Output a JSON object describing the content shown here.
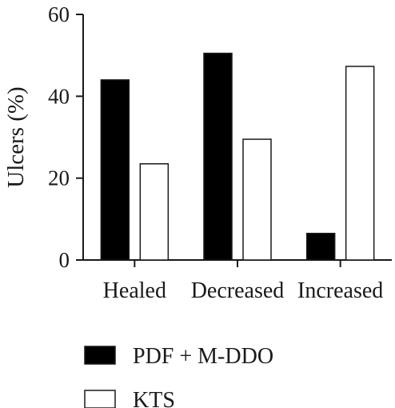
{
  "chart_data": {
    "type": "bar",
    "categories": [
      "Healed",
      "Decreased",
      "Increased"
    ],
    "series": [
      {
        "name": "PDF + M-DDO",
        "values": [
          44,
          50.5,
          6.5
        ],
        "color": "#000000"
      },
      {
        "name": "KTS",
        "values": [
          23.5,
          29.5,
          47.3
        ],
        "color": "#ffffff"
      }
    ],
    "xlabel": "",
    "ylabel": "Ulcers (%)",
    "ylim": [
      0,
      60
    ],
    "yticks": [
      0,
      20,
      40,
      60
    ],
    "grid": false,
    "legend": "bottom"
  }
}
